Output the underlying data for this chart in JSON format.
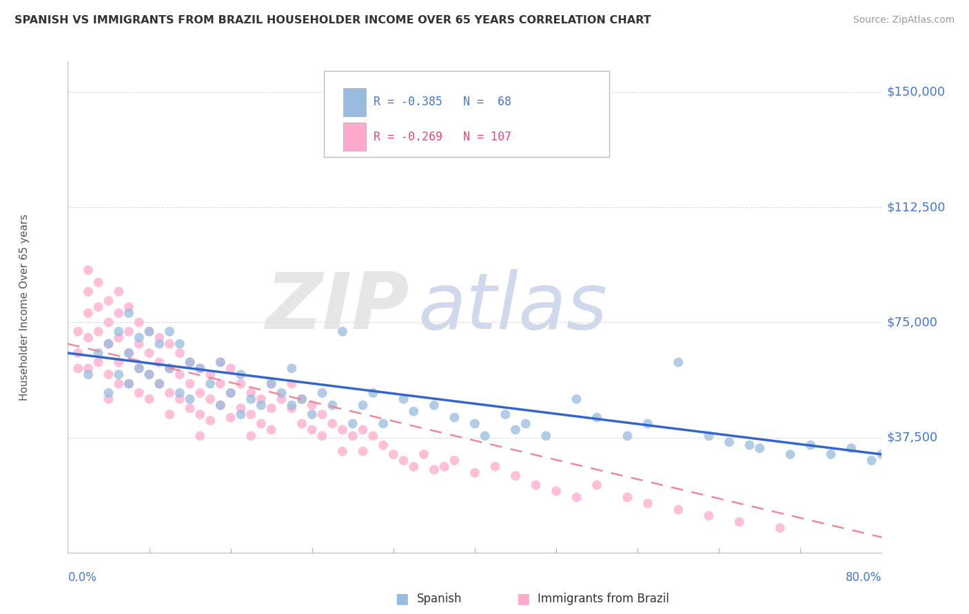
{
  "title": "SPANISH VS IMMIGRANTS FROM BRAZIL HOUSEHOLDER INCOME OVER 65 YEARS CORRELATION CHART",
  "source": "Source: ZipAtlas.com",
  "ylabel": "Householder Income Over 65 years",
  "xlim": [
    0.0,
    0.8
  ],
  "ylim": [
    0,
    160000
  ],
  "yticks": [
    0,
    37500,
    75000,
    112500,
    150000
  ],
  "ytick_labels": [
    "",
    "$37,500",
    "$75,000",
    "$112,500",
    "$150,000"
  ],
  "legend_r1": "R = -0.385   N =  68",
  "legend_r2": "R = -0.269   N = 107",
  "legend_color1": "#4477cc",
  "legend_color2": "#ee4477",
  "spanish_color": "#99bbdd",
  "brazil_color": "#ffaacc",
  "spanish_line_color": "#3366cc",
  "brazil_line_color": "#ee8899",
  "axis_label_color": "#4477cc",
  "grid_color": "#dddddd",
  "watermark_zip_color": "#e6e6e6",
  "watermark_atlas_color": "#d0d8ee",
  "background_color": "#ffffff",
  "spanish_x": [
    0.02,
    0.03,
    0.04,
    0.04,
    0.05,
    0.05,
    0.06,
    0.06,
    0.06,
    0.07,
    0.07,
    0.08,
    0.08,
    0.09,
    0.09,
    0.1,
    0.1,
    0.11,
    0.11,
    0.12,
    0.12,
    0.13,
    0.14,
    0.15,
    0.15,
    0.16,
    0.17,
    0.17,
    0.18,
    0.19,
    0.2,
    0.21,
    0.22,
    0.22,
    0.23,
    0.24,
    0.25,
    0.26,
    0.27,
    0.28,
    0.29,
    0.3,
    0.31,
    0.33,
    0.34,
    0.36,
    0.38,
    0.4,
    0.41,
    0.43,
    0.44,
    0.45,
    0.47,
    0.5,
    0.52,
    0.55,
    0.57,
    0.6,
    0.63,
    0.65,
    0.67,
    0.68,
    0.71,
    0.73,
    0.75,
    0.77,
    0.79,
    0.8
  ],
  "spanish_y": [
    58000,
    65000,
    68000,
    52000,
    72000,
    58000,
    78000,
    65000,
    55000,
    70000,
    60000,
    72000,
    58000,
    68000,
    55000,
    72000,
    60000,
    68000,
    52000,
    62000,
    50000,
    60000,
    55000,
    62000,
    48000,
    52000,
    58000,
    45000,
    50000,
    48000,
    55000,
    52000,
    48000,
    60000,
    50000,
    45000,
    52000,
    48000,
    72000,
    42000,
    48000,
    52000,
    42000,
    50000,
    46000,
    48000,
    44000,
    42000,
    38000,
    45000,
    40000,
    42000,
    38000,
    50000,
    44000,
    38000,
    42000,
    62000,
    38000,
    36000,
    35000,
    34000,
    32000,
    35000,
    32000,
    34000,
    30000,
    32000
  ],
  "brazil_x": [
    0.01,
    0.01,
    0.01,
    0.02,
    0.02,
    0.02,
    0.02,
    0.02,
    0.03,
    0.03,
    0.03,
    0.03,
    0.04,
    0.04,
    0.04,
    0.04,
    0.04,
    0.05,
    0.05,
    0.05,
    0.05,
    0.05,
    0.06,
    0.06,
    0.06,
    0.06,
    0.07,
    0.07,
    0.07,
    0.07,
    0.08,
    0.08,
    0.08,
    0.08,
    0.09,
    0.09,
    0.09,
    0.1,
    0.1,
    0.1,
    0.1,
    0.11,
    0.11,
    0.11,
    0.12,
    0.12,
    0.12,
    0.13,
    0.13,
    0.13,
    0.13,
    0.14,
    0.14,
    0.14,
    0.15,
    0.15,
    0.15,
    0.16,
    0.16,
    0.16,
    0.17,
    0.17,
    0.18,
    0.18,
    0.18,
    0.19,
    0.19,
    0.2,
    0.2,
    0.2,
    0.21,
    0.22,
    0.22,
    0.23,
    0.23,
    0.24,
    0.24,
    0.25,
    0.25,
    0.26,
    0.27,
    0.27,
    0.28,
    0.29,
    0.29,
    0.3,
    0.31,
    0.32,
    0.33,
    0.34,
    0.35,
    0.36,
    0.37,
    0.38,
    0.4,
    0.42,
    0.44,
    0.46,
    0.48,
    0.5,
    0.52,
    0.55,
    0.57,
    0.6,
    0.63,
    0.66,
    0.7
  ],
  "brazil_y": [
    72000,
    65000,
    60000,
    92000,
    85000,
    78000,
    70000,
    60000,
    88000,
    80000,
    72000,
    62000,
    82000,
    75000,
    68000,
    58000,
    50000,
    85000,
    78000,
    70000,
    62000,
    55000,
    80000,
    72000,
    65000,
    55000,
    75000,
    68000,
    60000,
    52000,
    72000,
    65000,
    58000,
    50000,
    70000,
    62000,
    55000,
    68000,
    60000,
    52000,
    45000,
    65000,
    58000,
    50000,
    62000,
    55000,
    47000,
    60000,
    52000,
    45000,
    38000,
    58000,
    50000,
    43000,
    62000,
    55000,
    48000,
    60000,
    52000,
    44000,
    55000,
    47000,
    52000,
    45000,
    38000,
    50000,
    42000,
    55000,
    47000,
    40000,
    50000,
    55000,
    47000,
    50000,
    42000,
    48000,
    40000,
    45000,
    38000,
    42000,
    40000,
    33000,
    38000,
    40000,
    33000,
    38000,
    35000,
    32000,
    30000,
    28000,
    32000,
    27000,
    28000,
    30000,
    26000,
    28000,
    25000,
    22000,
    20000,
    18000,
    22000,
    18000,
    16000,
    14000,
    12000,
    10000,
    8000
  ]
}
